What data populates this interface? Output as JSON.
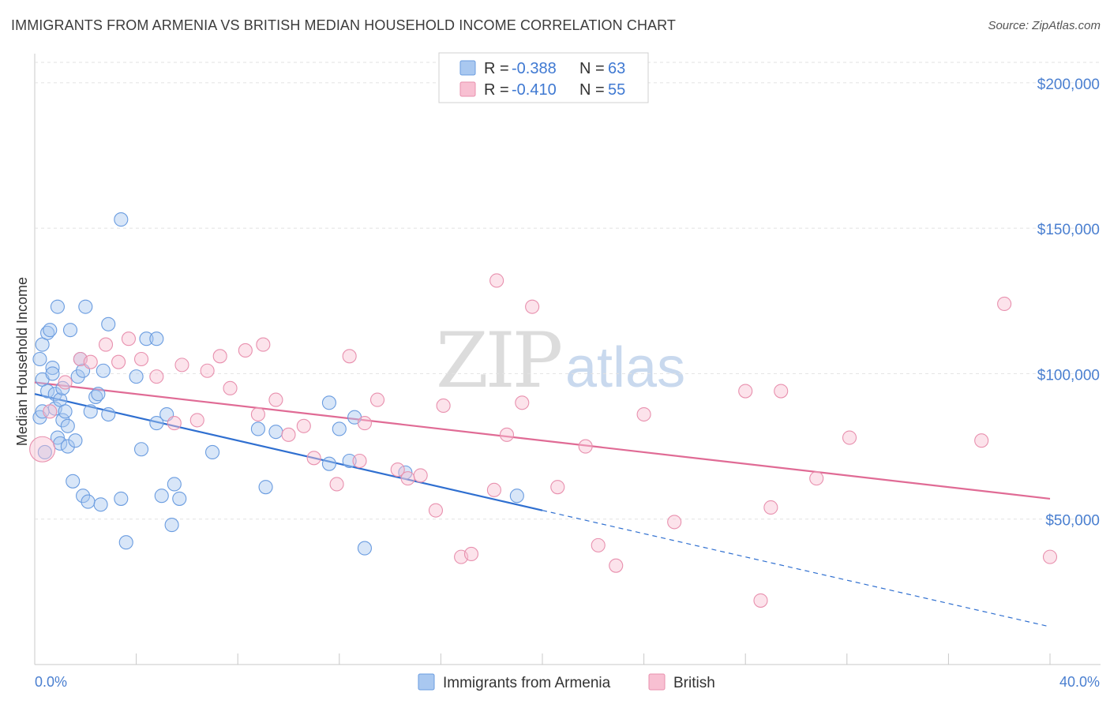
{
  "title": "IMMIGRANTS FROM ARMENIA VS BRITISH MEDIAN HOUSEHOLD INCOME CORRELATION CHART",
  "source": "Source: ZipAtlas.com",
  "watermark": {
    "part1": "ZIP",
    "part2": "atlas"
  },
  "legend": {
    "r_label": "R =",
    "n_label": "N =",
    "rows": [
      {
        "r": "-0.388",
        "n": "63",
        "color": "#a9c8f0",
        "stroke": "#6a9ce0"
      },
      {
        "r": "-0.410",
        "n": "55",
        "color": "#f8c0d2",
        "stroke": "#e890ae"
      }
    ]
  },
  "chart_data": {
    "type": "scatter",
    "title": "IMMIGRANTS FROM ARMENIA VS BRITISH MEDIAN HOUSEHOLD INCOME CORRELATION CHART",
    "xlabel": "",
    "ylabel": "Median Household Income",
    "xlim": [
      0,
      40
    ],
    "ylim": [
      0,
      210000
    ],
    "x_tick_labels": [
      "0.0%",
      "40.0%"
    ],
    "y_tick_values": [
      50000,
      100000,
      150000,
      200000
    ],
    "y_tick_labels": [
      "$50,000",
      "$100,000",
      "$150,000",
      "$200,000"
    ],
    "grid": "horizontal dashed",
    "legend_position": "top-center and bottom",
    "series": [
      {
        "name": "Immigrants from Armenia",
        "color": "#6a9ce0",
        "fill": "#a9c8f0",
        "trend": {
          "x0": 0,
          "y0": 93000,
          "x1": 20,
          "y1": 53000,
          "dashed_to_x": 40,
          "dashed_to_y": 13000
        },
        "points": [
          [
            3.4,
            153000
          ],
          [
            0.2,
            85000
          ],
          [
            0.2,
            105000
          ],
          [
            0.3,
            98000
          ],
          [
            0.3,
            110000
          ],
          [
            0.5,
            94000
          ],
          [
            0.5,
            114000
          ],
          [
            0.6,
            115000
          ],
          [
            0.7,
            102000
          ],
          [
            0.8,
            93000
          ],
          [
            0.8,
            88000
          ],
          [
            0.9,
            123000
          ],
          [
            0.9,
            78000
          ],
          [
            1.0,
            91000
          ],
          [
            1.0,
            76000
          ],
          [
            1.1,
            84000
          ],
          [
            1.2,
            87000
          ],
          [
            1.3,
            82000
          ],
          [
            1.3,
            75000
          ],
          [
            1.4,
            115000
          ],
          [
            1.5,
            63000
          ],
          [
            1.6,
            77000
          ],
          [
            1.7,
            99000
          ],
          [
            1.8,
            105000
          ],
          [
            1.9,
            58000
          ],
          [
            2.0,
            123000
          ],
          [
            2.1,
            56000
          ],
          [
            2.2,
            87000
          ],
          [
            2.4,
            92000
          ],
          [
            2.5,
            93000
          ],
          [
            2.7,
            101000
          ],
          [
            2.6,
            55000
          ],
          [
            2.9,
            117000
          ],
          [
            2.9,
            86000
          ],
          [
            3.4,
            57000
          ],
          [
            3.6,
            42000
          ],
          [
            4.0,
            99000
          ],
          [
            4.2,
            74000
          ],
          [
            4.4,
            112000
          ],
          [
            4.8,
            112000
          ],
          [
            4.8,
            83000
          ],
          [
            5.0,
            58000
          ],
          [
            5.2,
            86000
          ],
          [
            5.4,
            48000
          ],
          [
            5.5,
            62000
          ],
          [
            5.7,
            57000
          ],
          [
            7.0,
            73000
          ],
          [
            8.8,
            81000
          ],
          [
            9.1,
            61000
          ],
          [
            9.5,
            80000
          ],
          [
            11.6,
            69000
          ],
          [
            11.6,
            90000
          ],
          [
            12.0,
            81000
          ],
          [
            12.4,
            70000
          ],
          [
            12.6,
            85000
          ],
          [
            13.0,
            40000
          ],
          [
            14.6,
            66000
          ],
          [
            19.0,
            58000
          ],
          [
            0.3,
            87000
          ],
          [
            0.4,
            73000
          ],
          [
            1.1,
            95000
          ],
          [
            0.7,
            100000
          ],
          [
            1.9,
            101000
          ]
        ]
      },
      {
        "name": "British",
        "color": "#e06b95",
        "fill": "#f8c0d2",
        "trend": {
          "x0": 0,
          "y0": 97000,
          "x1": 40,
          "y1": 57000
        },
        "points": [
          [
            0.3,
            74000
          ],
          [
            0.6,
            87000
          ],
          [
            1.2,
            97000
          ],
          [
            1.8,
            105000
          ],
          [
            2.2,
            104000
          ],
          [
            2.8,
            110000
          ],
          [
            3.3,
            104000
          ],
          [
            3.7,
            112000
          ],
          [
            4.2,
            105000
          ],
          [
            4.8,
            99000
          ],
          [
            5.5,
            83000
          ],
          [
            5.8,
            103000
          ],
          [
            6.4,
            84000
          ],
          [
            6.8,
            101000
          ],
          [
            7.3,
            106000
          ],
          [
            7.7,
            95000
          ],
          [
            8.3,
            108000
          ],
          [
            8.8,
            86000
          ],
          [
            9.0,
            110000
          ],
          [
            9.5,
            91000
          ],
          [
            10.0,
            79000
          ],
          [
            10.6,
            82000
          ],
          [
            11.0,
            71000
          ],
          [
            11.9,
            62000
          ],
          [
            12.4,
            106000
          ],
          [
            12.8,
            70000
          ],
          [
            13.0,
            83000
          ],
          [
            13.5,
            91000
          ],
          [
            14.3,
            67000
          ],
          [
            14.7,
            64000
          ],
          [
            15.2,
            65000
          ],
          [
            15.8,
            53000
          ],
          [
            16.1,
            89000
          ],
          [
            16.8,
            37000
          ],
          [
            17.2,
            38000
          ],
          [
            18.1,
            60000
          ],
          [
            18.2,
            132000
          ],
          [
            18.6,
            79000
          ],
          [
            19.2,
            90000
          ],
          [
            19.6,
            123000
          ],
          [
            20.6,
            61000
          ],
          [
            21.7,
            75000
          ],
          [
            22.2,
            41000
          ],
          [
            22.9,
            34000
          ],
          [
            24.0,
            86000
          ],
          [
            25.2,
            49000
          ],
          [
            28.0,
            94000
          ],
          [
            28.6,
            22000
          ],
          [
            29.0,
            54000
          ],
          [
            29.4,
            94000
          ],
          [
            30.8,
            64000
          ],
          [
            32.1,
            78000
          ],
          [
            37.3,
            77000
          ],
          [
            38.2,
            124000
          ],
          [
            40.0,
            37000
          ]
        ]
      }
    ]
  },
  "bottom_legend": {
    "items": [
      {
        "label": "Immigrants from Armenia",
        "fill": "#a9c8f0",
        "stroke": "#6a9ce0"
      },
      {
        "label": "British",
        "fill": "#f8c0d2",
        "stroke": "#e890ae"
      }
    ]
  }
}
